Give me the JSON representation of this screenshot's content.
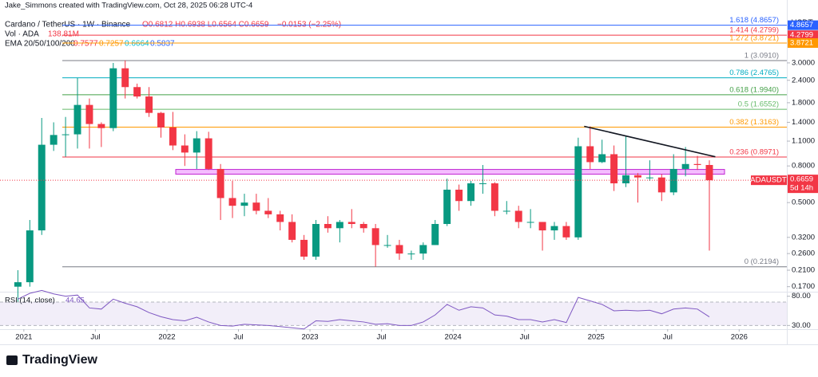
{
  "chart_data": {
    "type": "candlestick",
    "credit": "Jake_Simmons created with TradingView.com, Oct 28, 2025 06:28 UTC-4",
    "legend": {
      "symbol": "Cardano / TetherUS · 1W · Binance",
      "ohlc": "O0.6812 H0.6938 L0.6564 C0.6659",
      "change": "−0.0153 (−2.25%)",
      "vol_label": "Vol · ADA",
      "vol_value": "138.81M",
      "ema_label": "EMA 20/50/100/200",
      "ema_values": [
        "0.7577",
        "0.7257",
        "0.6664",
        "0.5837"
      ],
      "ema_colors": [
        "#f23645",
        "#ff9800",
        "#00bcd4",
        "#2962ff"
      ]
    },
    "currency": "USDT",
    "symbol_tag": "ADAUSDT",
    "countdown": "5d 14h",
    "log_scale": true,
    "up_color": "#089981",
    "down_color": "#f23645",
    "x": [
      "2020-12",
      "2021-01",
      "2021-02",
      "2021-03",
      "2021-04",
      "2021-05",
      "2021-06",
      "2021-07",
      "2021-08",
      "2021-09",
      "2021-10",
      "2021-11",
      "2021-12",
      "2022-01",
      "2022-02",
      "2022-03",
      "2022-04",
      "2022-05",
      "2022-06",
      "2022-07",
      "2022-08",
      "2022-09",
      "2022-10",
      "2022-11",
      "2022-12",
      "2023-01",
      "2023-02",
      "2023-03",
      "2023-04",
      "2023-05",
      "2023-06",
      "2023-07",
      "2023-08",
      "2023-09",
      "2023-10",
      "2023-11",
      "2023-12",
      "2024-01",
      "2024-02",
      "2024-03",
      "2024-04",
      "2024-05",
      "2024-06",
      "2024-07",
      "2024-08",
      "2024-09",
      "2024-10",
      "2024-11",
      "2024-12",
      "2025-01",
      "2025-02",
      "2025-03",
      "2025-04",
      "2025-05",
      "2025-06",
      "2025-07",
      "2025-08",
      "2025-09",
      "2025-10"
    ],
    "open": [
      0.17,
      0.18,
      0.35,
      1.05,
      1.19,
      1.2,
      1.75,
      1.37,
      1.3,
      2.8,
      2.2,
      1.95,
      1.58,
      1.31,
      1.04,
      0.95,
      1.14,
      0.77,
      0.53,
      0.48,
      0.5,
      0.45,
      0.43,
      0.39,
      0.31,
      0.25,
      0.38,
      0.36,
      0.39,
      0.38,
      0.36,
      0.29,
      0.29,
      0.26,
      0.26,
      0.29,
      0.38,
      0.59,
      0.51,
      0.64,
      0.64,
      0.45,
      0.45,
      0.39,
      0.39,
      0.35,
      0.37,
      0.32,
      1.03,
      0.84,
      0.93,
      0.64,
      0.71,
      0.69,
      0.69,
      0.57,
      0.77,
      0.82,
      0.81
    ],
    "high": [
      0.21,
      0.4,
      1.48,
      1.4,
      1.5,
      2.47,
      1.9,
      1.4,
      3.0,
      3.1,
      2.3,
      2.2,
      1.6,
      1.6,
      1.2,
      1.25,
      1.24,
      0.82,
      0.66,
      0.56,
      0.56,
      0.53,
      0.45,
      0.43,
      0.33,
      0.4,
      0.42,
      0.4,
      0.46,
      0.39,
      0.38,
      0.33,
      0.31,
      0.27,
      0.3,
      0.4,
      0.68,
      0.63,
      0.66,
      0.81,
      0.65,
      0.51,
      0.48,
      0.46,
      0.39,
      0.39,
      0.39,
      1.15,
      1.33,
      1.12,
      1.04,
      1.17,
      0.73,
      0.86,
      0.72,
      0.93,
      1.02,
      0.91,
      0.86
    ],
    "low": [
      0.14,
      0.17,
      0.33,
      0.97,
      0.9,
      1.0,
      1.0,
      1.02,
      1.25,
      1.9,
      1.9,
      1.5,
      1.15,
      0.98,
      0.8,
      0.77,
      0.76,
      0.4,
      0.41,
      0.42,
      0.43,
      0.41,
      0.35,
      0.3,
      0.24,
      0.24,
      0.34,
      0.3,
      0.36,
      0.34,
      0.22,
      0.28,
      0.24,
      0.24,
      0.24,
      0.29,
      0.37,
      0.45,
      0.48,
      0.56,
      0.42,
      0.43,
      0.36,
      0.36,
      0.27,
      0.31,
      0.31,
      0.31,
      0.77,
      0.83,
      0.58,
      0.61,
      0.5,
      0.66,
      0.51,
      0.55,
      0.7,
      0.76,
      0.27
    ],
    "close": [
      0.18,
      0.35,
      1.05,
      1.19,
      1.2,
      1.75,
      1.37,
      1.3,
      2.8,
      2.2,
      1.95,
      1.58,
      1.31,
      1.04,
      0.95,
      1.14,
      0.77,
      0.53,
      0.48,
      0.5,
      0.45,
      0.43,
      0.39,
      0.31,
      0.25,
      0.38,
      0.36,
      0.39,
      0.38,
      0.36,
      0.29,
      0.29,
      0.26,
      0.26,
      0.29,
      0.38,
      0.59,
      0.51,
      0.64,
      0.64,
      0.45,
      0.45,
      0.39,
      0.39,
      0.35,
      0.37,
      0.32,
      1.03,
      0.84,
      0.93,
      0.64,
      0.71,
      0.69,
      0.69,
      0.57,
      0.77,
      0.82,
      0.81,
      0.6659
    ],
    "xlim": [
      "2020-11",
      "2026-05"
    ],
    "xticks": [
      {
        "value": "2021-01",
        "label": "2021"
      },
      {
        "value": "2021-07",
        "label": "Jul"
      },
      {
        "value": "2022-01",
        "label": "2022"
      },
      {
        "value": "2022-07",
        "label": "Jul"
      },
      {
        "value": "2023-01",
        "label": "2023"
      },
      {
        "value": "2023-07",
        "label": "Jul"
      },
      {
        "value": "2024-01",
        "label": "2024"
      },
      {
        "value": "2024-07",
        "label": "Jul"
      },
      {
        "value": "2025-01",
        "label": "2025"
      },
      {
        "value": "2025-07",
        "label": "Jul"
      },
      {
        "value": "2026-01",
        "label": "2026"
      }
    ],
    "ylim": [
      0.161,
      5.48
    ],
    "yticks": [
      {
        "value": 3,
        "label": "3.0000"
      },
      {
        "value": 2.4,
        "label": "2.4000"
      },
      {
        "value": 1.8,
        "label": "1.8000"
      },
      {
        "value": 1.4,
        "label": "1.4000"
      },
      {
        "value": 1.1,
        "label": "1.1000"
      },
      {
        "value": 0.8,
        "label": "0.8000"
      },
      {
        "value": 0.5,
        "label": "0.5000"
      },
      {
        "value": 0.32,
        "label": "0.3200"
      },
      {
        "value": 0.26,
        "label": "0.2600"
      },
      {
        "value": 0.21,
        "label": "0.2100"
      },
      {
        "value": 0.17,
        "label": "0.1700"
      }
    ],
    "fib": [
      {
        "label": "1.618 (4.8657)",
        "value": 4.8657,
        "color": "#2962ff",
        "axis_tag": true
      },
      {
        "label": "1.414 (4.2799)",
        "value": 4.2799,
        "color": "#f23645",
        "axis_tag": true
      },
      {
        "label": "1.272 (3.8721)",
        "value": 3.8721,
        "color": "#ff9800",
        "axis_tag": true
      },
      {
        "label": "1 (3.0910)",
        "value": 3.091,
        "color": "#787b86",
        "axis_tag": false
      },
      {
        "label": "0.786 (2.4765)",
        "value": 2.4765,
        "color": "#00acc1",
        "axis_tag": false
      },
      {
        "label": "0.618 (1.9940)",
        "value": 1.994,
        "color": "#43a047",
        "axis_tag": false
      },
      {
        "label": "0.5 (1.6552)",
        "value": 1.6552,
        "color": "#66bb6a",
        "axis_tag": false
      },
      {
        "label": "0.382 (1.3163)",
        "value": 1.3163,
        "color": "#ff9800",
        "axis_tag": false
      },
      {
        "label": "0.236 (0.8971)",
        "value": 0.8971,
        "color": "#f23645",
        "axis_tag": false
      },
      {
        "label": "0 (0.2194)",
        "value": 0.2194,
        "color": "#787b86",
        "axis_tag": false
      }
    ],
    "zone": [
      0.72,
      0.765
    ],
    "trendline": {
      "x": [
        "2024-12",
        "2025-11"
      ],
      "values": [
        1.33,
        0.9
      ]
    },
    "rsi": {
      "label": "RSI (14, close)",
      "color": "#7e57c2",
      "values": [
        75,
        85,
        90,
        84,
        80,
        82,
        60,
        58,
        75,
        68,
        62,
        52,
        45,
        40,
        38,
        44,
        36,
        30,
        29,
        32,
        31,
        30,
        28,
        26,
        24,
        38,
        37,
        40,
        38,
        36,
        32,
        33,
        30,
        30,
        36,
        48,
        66,
        56,
        62,
        60,
        48,
        46,
        40,
        40,
        36,
        40,
        35,
        78,
        72,
        66,
        55,
        56,
        55,
        56,
        50,
        58,
        60,
        58,
        44.65
      ],
      "ylim": [
        25,
        85
      ],
      "band": [
        30,
        70
      ],
      "yticks": [
        {
          "value": 80,
          "label": "80.00"
        },
        {
          "value": 30,
          "label": "30.00"
        }
      ]
    },
    "brand": "TradingView"
  }
}
